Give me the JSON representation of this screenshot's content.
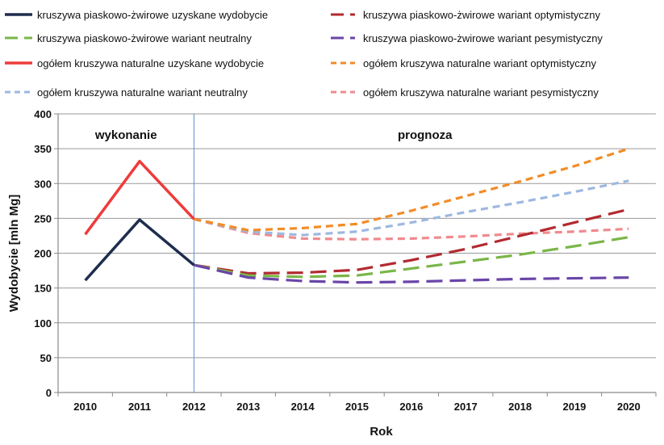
{
  "chart_data": {
    "type": "line",
    "title": "",
    "xlabel": "Rok",
    "ylabel": "Wydobycie [mln Mg]",
    "x": [
      2010,
      2011,
      2012,
      2013,
      2014,
      2015,
      2016,
      2017,
      2018,
      2019,
      2020
    ],
    "ylim": [
      0,
      400
    ],
    "yticks": [
      0,
      50,
      100,
      150,
      200,
      250,
      300,
      350,
      400
    ],
    "grid": true,
    "legend_position": "top",
    "annotations": [
      "wykonanie",
      "prognoza"
    ],
    "divider_x": 2012,
    "series": [
      {
        "name": "kruszywa piaskowo-żwirowe uzyskane wydobycie",
        "color": "#1f2d4e",
        "style": "solid",
        "x": [
          2010,
          2011,
          2012
        ],
        "values": [
          161,
          248,
          183
        ]
      },
      {
        "name": "kruszywa piaskowo-żwirowe wariant optymistyczny",
        "color": "#b22a30",
        "style": "longdash",
        "x": [
          2012,
          2013,
          2014,
          2015,
          2016,
          2017,
          2018,
          2019,
          2020
        ],
        "values": [
          183,
          171,
          172,
          176,
          190,
          206,
          225,
          244,
          263
        ]
      },
      {
        "name": "kruszywa piaskowo-żwirowe wariant neutralny",
        "color": "#7ab648",
        "style": "longdash",
        "x": [
          2012,
          2013,
          2014,
          2015,
          2016,
          2017,
          2018,
          2019,
          2020
        ],
        "values": [
          183,
          168,
          166,
          168,
          178,
          188,
          198,
          210,
          223
        ]
      },
      {
        "name": "kruszywa piaskowo-żwirowe wariant pesymistyczny",
        "color": "#6a45a8",
        "style": "longdash",
        "x": [
          2012,
          2013,
          2014,
          2015,
          2016,
          2017,
          2018,
          2019,
          2020
        ],
        "values": [
          183,
          165,
          160,
          158,
          159,
          161,
          163,
          164,
          165
        ]
      },
      {
        "name": "ogółem kruszywa naturalne uzyskane wydobycie",
        "color": "#ee3b3b",
        "style": "solid",
        "x": [
          2010,
          2011,
          2012
        ],
        "values": [
          227,
          332,
          249
        ]
      },
      {
        "name": "ogółem kruszywa naturalne wariant optymistyczny",
        "color": "#f28c28",
        "style": "dash",
        "x": [
          2012,
          2013,
          2014,
          2015,
          2016,
          2017,
          2018,
          2019,
          2020
        ],
        "values": [
          249,
          233,
          236,
          242,
          261,
          282,
          303,
          325,
          350
        ]
      },
      {
        "name": "ogółem kruszywa naturalne wariant neutralny",
        "color": "#9db8e0",
        "style": "dash",
        "x": [
          2012,
          2013,
          2014,
          2015,
          2016,
          2017,
          2018,
          2019,
          2020
        ],
        "values": [
          249,
          231,
          226,
          231,
          244,
          259,
          273,
          288,
          304
        ]
      },
      {
        "name": "ogółem kruszywa naturalne wariant pesymistyczny",
        "color": "#f08a8e",
        "style": "dash",
        "x": [
          2012,
          2013,
          2014,
          2015,
          2016,
          2017,
          2018,
          2019,
          2020
        ],
        "values": [
          249,
          229,
          221,
          220,
          221,
          224,
          228,
          231,
          235
        ]
      }
    ]
  }
}
